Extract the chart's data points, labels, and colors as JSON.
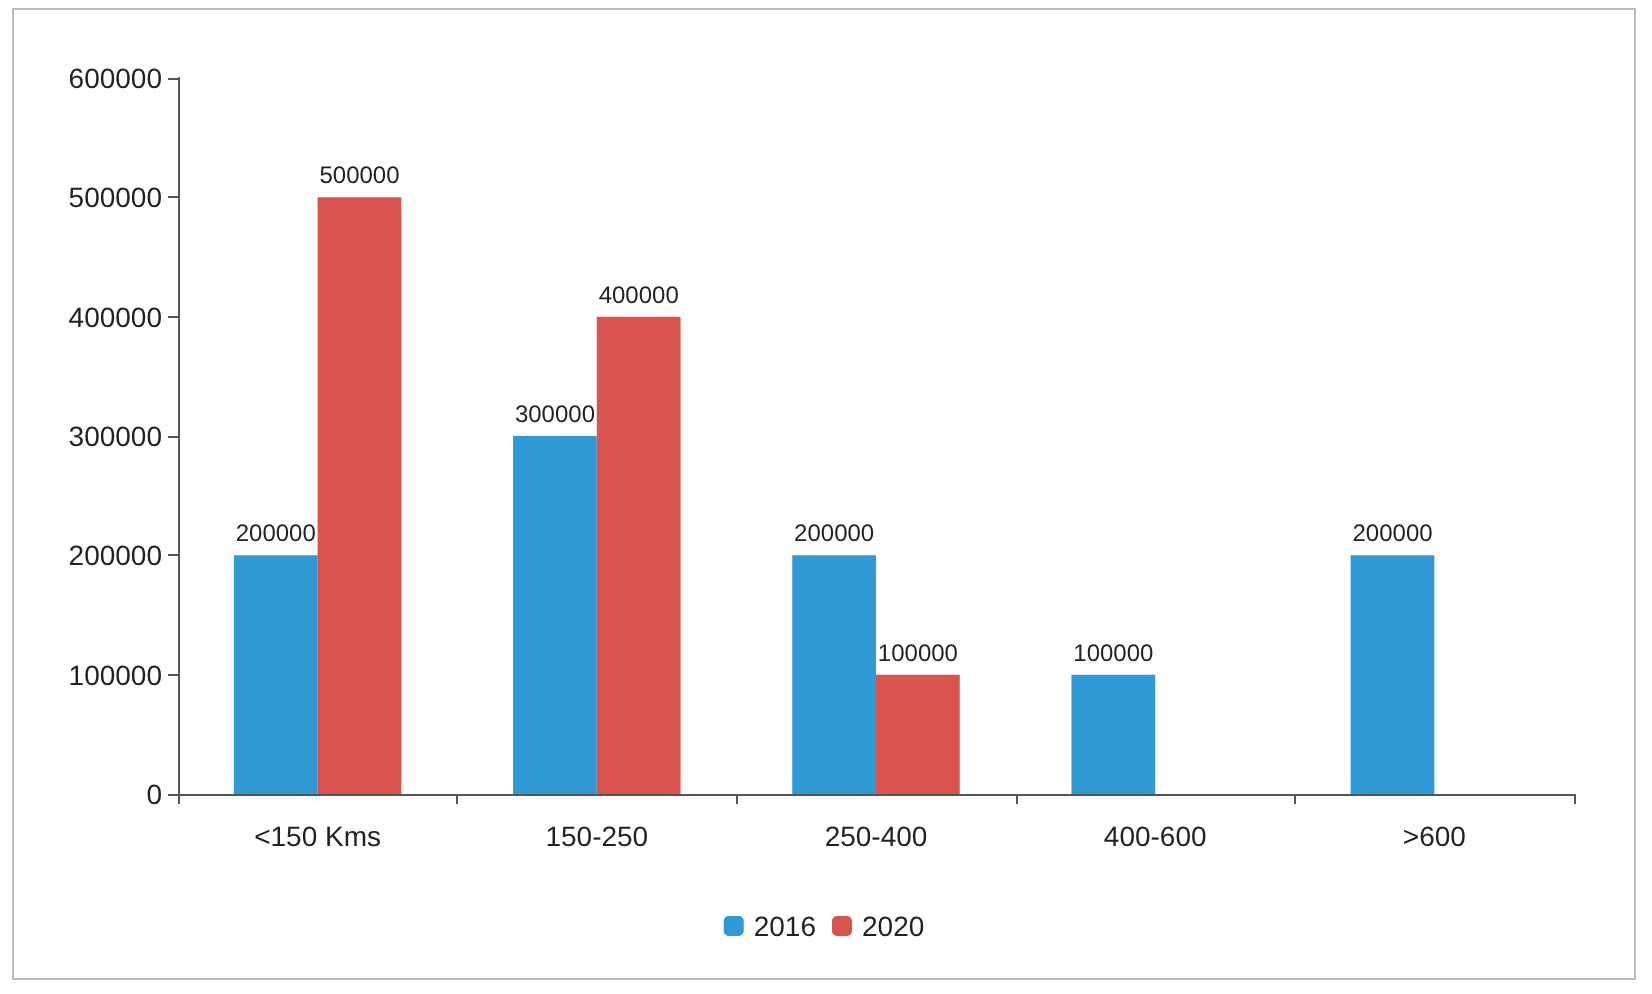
{
  "chart_data": {
    "type": "bar",
    "categories": [
      "<150 Kms",
      "150-250",
      "250-400",
      "400-600",
      ">600"
    ],
    "series": [
      {
        "name": "2016",
        "color": "#2f9ad6",
        "values": [
          200000,
          300000,
          200000,
          100000,
          200000
        ]
      },
      {
        "name": "2020",
        "color": "#d9534f",
        "values": [
          500000,
          400000,
          100000,
          null,
          null
        ]
      }
    ],
    "ylim": [
      0,
      600000
    ],
    "yticks": [
      0,
      100000,
      200000,
      300000,
      400000,
      500000,
      600000
    ],
    "grid": false,
    "legend": "bottom",
    "data_labels": true
  }
}
